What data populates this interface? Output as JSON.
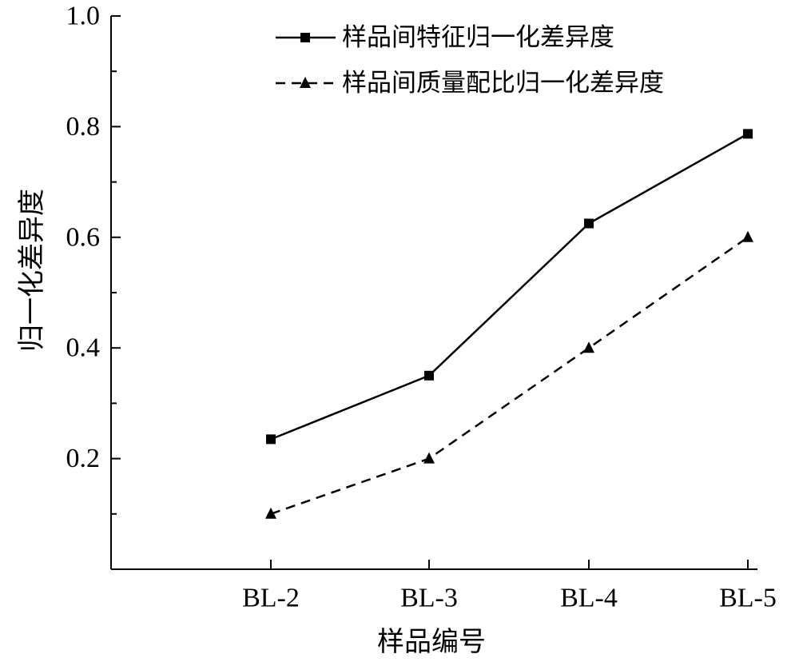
{
  "chart_data": {
    "type": "line",
    "title": "",
    "xlabel": "样品编号",
    "ylabel": "归一化差异度",
    "categories": [
      "BL-2",
      "BL-3",
      "BL-4",
      "BL-5"
    ],
    "ylim": [
      0,
      1.0
    ],
    "yticks": [
      "0.2",
      "0.4",
      "0.6",
      "0.8",
      "1.0"
    ],
    "grid": false,
    "legend_position": "top-right",
    "series": [
      {
        "name": "样品间特征归一化差异度",
        "values": [
          0.235,
          0.35,
          0.625,
          0.787
        ],
        "line_style": "solid",
        "marker": "square",
        "color": "#000000"
      },
      {
        "name": "样品间质量配比归一化差异度",
        "values": [
          0.1,
          0.2,
          0.4,
          0.6
        ],
        "line_style": "dashed",
        "marker": "triangle",
        "color": "#000000"
      }
    ]
  }
}
